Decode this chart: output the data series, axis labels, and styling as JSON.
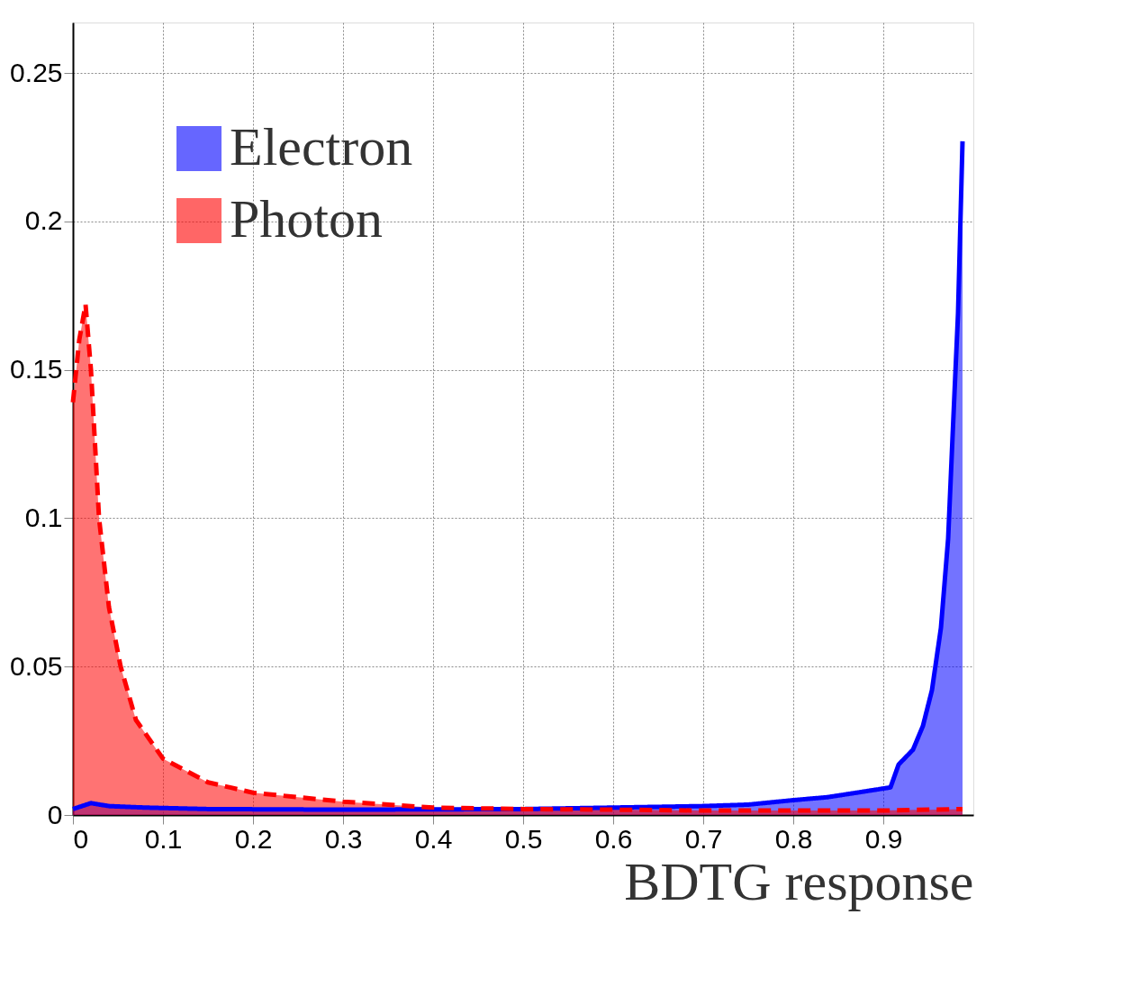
{
  "chart_data": {
    "type": "area",
    "xlabel": "BDTG response",
    "xlim": [
      0,
      1
    ],
    "ylim": [
      0,
      0.267
    ],
    "xticks": [
      0,
      0.1,
      0.2,
      0.3,
      0.4,
      0.5,
      0.6,
      0.7,
      0.8,
      0.9
    ],
    "yticks": [
      0,
      0.05,
      0.1,
      0.15,
      0.2,
      0.25
    ],
    "grid": true,
    "legend": "top left",
    "series": [
      {
        "name": "Electron",
        "color": "#0000ff",
        "line_style": "solid",
        "x": [
          0,
          0.01,
          0.02,
          0.04,
          0.08,
          0.15,
          0.3,
          0.5,
          0.6,
          0.7,
          0.75,
          0.8,
          0.838,
          0.87,
          0.908,
          0.917,
          0.933,
          0.944,
          0.954,
          0.964,
          0.972,
          0.977,
          0.983,
          0.988
        ],
        "values": [
          0.002,
          0.003,
          0.004,
          0.003,
          0.0025,
          0.002,
          0.0018,
          0.002,
          0.0025,
          0.003,
          0.0035,
          0.005,
          0.006,
          0.0075,
          0.0093,
          0.017,
          0.022,
          0.03,
          0.042,
          0.063,
          0.093,
          0.128,
          0.169,
          0.227
        ]
      },
      {
        "name": "Photon",
        "color": "#ff0000",
        "line_style": "dashed",
        "x": [
          0,
          0.007,
          0.014,
          0.02,
          0.029,
          0.04,
          0.053,
          0.07,
          0.1,
          0.15,
          0.2,
          0.3,
          0.4,
          0.5,
          0.6,
          0.7,
          0.8,
          0.9,
          0.988
        ],
        "values": [
          0.139,
          0.16,
          0.172,
          0.15,
          0.1,
          0.07,
          0.05,
          0.032,
          0.019,
          0.011,
          0.0075,
          0.0045,
          0.0025,
          0.002,
          0.0018,
          0.0015,
          0.0015,
          0.0015,
          0.002
        ]
      }
    ]
  }
}
